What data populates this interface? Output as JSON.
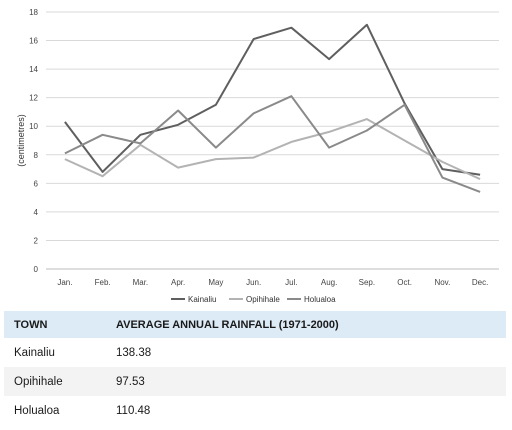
{
  "chart_data": {
    "type": "line",
    "categories": [
      "Jan.",
      "Feb.",
      "Mar.",
      "Apr.",
      "May",
      "Jun.",
      "Jul.",
      "Aug.",
      "Sep.",
      "Oct.",
      "Nov.",
      "Dec."
    ],
    "ylabel": "(centimetres)",
    "ylim": [
      0,
      18
    ],
    "yticks": [
      0,
      2,
      4,
      6,
      8,
      10,
      12,
      14,
      16,
      18
    ],
    "grid": true,
    "legend": "bottom",
    "series": [
      {
        "name": "Kainaliu",
        "color": "#5f5f5f",
        "values": [
          10.3,
          6.8,
          9.4,
          10.1,
          11.5,
          16.1,
          16.9,
          14.7,
          17.1,
          11.6,
          7.0,
          6.6
        ]
      },
      {
        "name": "Opihihale",
        "color": "#b3b3b3",
        "values": [
          7.7,
          6.5,
          8.7,
          7.1,
          7.7,
          7.8,
          8.9,
          9.6,
          10.5,
          9.0,
          7.5,
          6.3
        ]
      },
      {
        "name": "Holualoa",
        "color": "#8a8a8a",
        "values": [
          8.1,
          9.4,
          8.8,
          11.1,
          8.5,
          10.9,
          12.1,
          8.5,
          9.7,
          11.5,
          6.4,
          5.4
        ]
      }
    ]
  },
  "table": {
    "headers": [
      "TOWN",
      "AVERAGE ANNUAL RAINFALL (1971-2000)"
    ],
    "rows": [
      [
        "Kainaliu",
        "138.38"
      ],
      [
        "Opihihale",
        "97.53"
      ],
      [
        "Holualoa",
        "110.48"
      ]
    ]
  }
}
